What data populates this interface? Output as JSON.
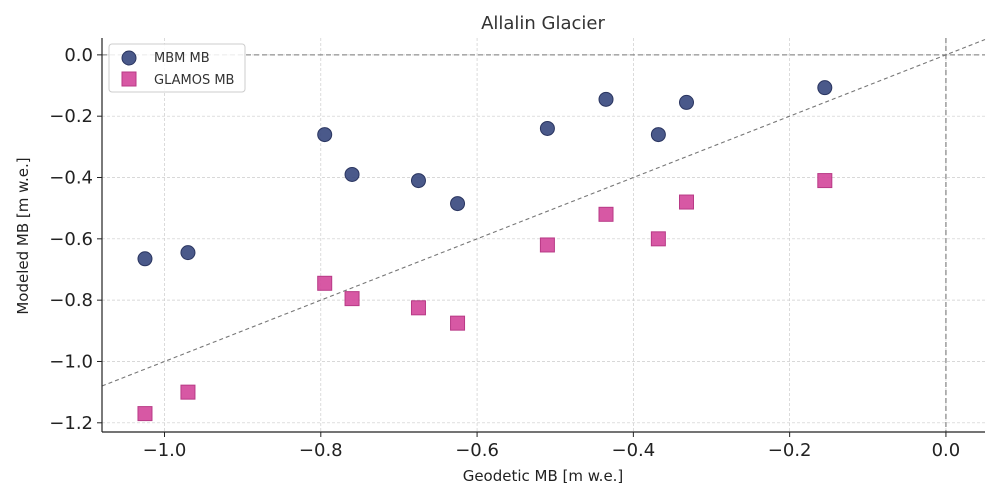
{
  "chart_data": {
    "type": "scatter",
    "title": "Allalin Glacier",
    "xlabel": "Geodetic MB [m w.e.]",
    "ylabel": "Modeled MB [m w.e.]",
    "xlim": [
      -1.08,
      0.05
    ],
    "ylim": [
      -1.23,
      0.055
    ],
    "xticks": [
      -1.0,
      -0.8,
      -0.6,
      -0.4,
      -0.2,
      0.0
    ],
    "xtick_labels": [
      "−1.0",
      "−0.8",
      "−0.6",
      "−0.4",
      "−0.2",
      "0.0"
    ],
    "yticks": [
      0.0,
      -0.2,
      -0.4,
      -0.6,
      -0.8,
      -1.0,
      -1.2
    ],
    "ytick_labels": [
      "0.0",
      "−0.2",
      "−0.4",
      "−0.6",
      "−0.8",
      "−1.0",
      "−1.2"
    ],
    "grid": true,
    "reference_lines": [
      "y = x",
      "x = 0",
      "y = 0"
    ],
    "legend_position": "top-left",
    "series": [
      {
        "name": "MBM MB",
        "marker": "circle",
        "color": "#3b4b80",
        "x": [
          -1.025,
          -0.97,
          -0.795,
          -0.76,
          -0.675,
          -0.625,
          -0.51,
          -0.435,
          -0.368,
          -0.332,
          -0.155
        ],
        "y": [
          -0.665,
          -0.645,
          -0.26,
          -0.39,
          -0.41,
          -0.485,
          -0.24,
          -0.145,
          -0.26,
          -0.155,
          -0.107
        ]
      },
      {
        "name": "GLAMOS MB",
        "marker": "square",
        "color": "#d44a9c",
        "x": [
          -1.025,
          -0.97,
          -0.795,
          -0.76,
          -0.675,
          -0.625,
          -0.51,
          -0.435,
          -0.368,
          -0.332,
          -0.155
        ],
        "y": [
          -1.17,
          -1.1,
          -0.745,
          -0.795,
          -0.825,
          -0.875,
          -0.62,
          -0.52,
          -0.6,
          -0.48,
          -0.41
        ]
      }
    ]
  }
}
